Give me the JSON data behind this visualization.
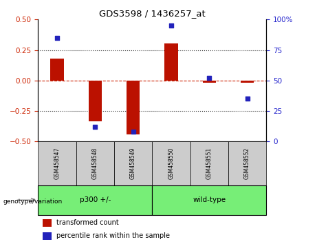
{
  "title": "GDS3598 / 1436257_at",
  "samples": [
    "GSM458547",
    "GSM458548",
    "GSM458549",
    "GSM458550",
    "GSM458551",
    "GSM458552"
  ],
  "bar_values": [
    0.18,
    -0.335,
    -0.44,
    0.305,
    -0.02,
    -0.02
  ],
  "percentile_values": [
    85,
    12,
    8,
    95,
    52,
    35
  ],
  "bar_color": "#bb1100",
  "percentile_color": "#2222bb",
  "ylim_left": [
    -0.5,
    0.5
  ],
  "ylim_right": [
    0,
    100
  ],
  "yticks_left": [
    -0.5,
    -0.25,
    0,
    0.25,
    0.5
  ],
  "yticks_right": [
    0,
    25,
    50,
    75,
    100
  ],
  "groups": [
    {
      "label": "p300 +/-",
      "start": 0,
      "end": 2,
      "color": "#77ee77"
    },
    {
      "label": "wild-type",
      "start": 3,
      "end": 5,
      "color": "#77ee77"
    }
  ],
  "group_label_prefix": "genotype/variation",
  "legend_bar_label": "transformed count",
  "legend_pct_label": "percentile rank within the sample",
  "tick_label_color_left": "#cc2200",
  "tick_label_color_right": "#2222cc",
  "zero_line_color": "#cc2200",
  "dotted_line_color": "#333333",
  "sample_bg_color": "#cccccc",
  "bar_width": 0.35,
  "figsize": [
    4.61,
    3.54
  ],
  "dpi": 100
}
